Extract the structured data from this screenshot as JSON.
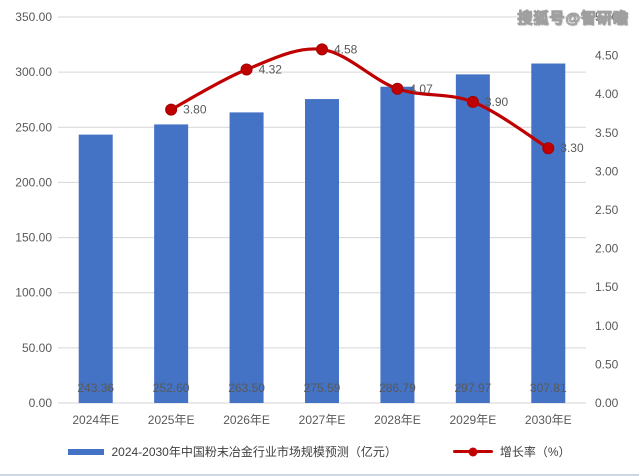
{
  "watermark": "搜狐号@智研瞻",
  "legend": [
    {
      "label": "2024-2030年中国粉末冶金行业市场规模预测（亿元）",
      "marker": "bar-swatch",
      "color": "#4472C4"
    },
    {
      "label": "增长率（%）",
      "marker": "line-swatch",
      "color": "#C00000"
    }
  ],
  "colors": {
    "bar": "#4472C4",
    "line": "#C00000",
    "marker": "#C00000",
    "axis_text": "#595959",
    "data_label_text": "#595959",
    "gridline": "#d6d6d6"
  },
  "chart_data": {
    "type": "bar",
    "subtype": "bar-line-combo",
    "title": "2024-2030年中国粉末冶金行业市场规模预测（亿元）",
    "categories": [
      "2024年E",
      "2025年E",
      "2026年E",
      "2027年E",
      "2028年E",
      "2029年E",
      "2030年E"
    ],
    "series": [
      {
        "name": "2024-2030年中国粉末冶金行业市场规模预测（亿元）",
        "type": "bar",
        "axis": "left",
        "color": "#4472C4",
        "values": [
          243.36,
          252.6,
          263.5,
          275.59,
          286.79,
          297.97,
          307.81
        ]
      },
      {
        "name": "增长率（%）",
        "type": "line",
        "axis": "right",
        "color": "#C00000",
        "smooth": true,
        "values": [
          null,
          3.8,
          4.32,
          4.58,
          4.07,
          3.9,
          3.3
        ]
      }
    ],
    "left_axis": {
      "min": 0,
      "max": 350,
      "step": 50,
      "decimals": 2
    },
    "right_axis": {
      "min": 0,
      "max": 5,
      "step": 0.5,
      "decimals": 2
    },
    "grid": true,
    "legend_position": "bottom",
    "data_labels_decimals": 2
  }
}
